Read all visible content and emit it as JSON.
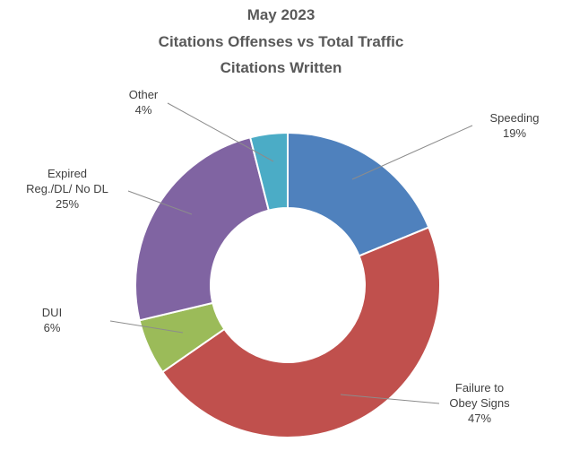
{
  "chart_data": {
    "type": "pie",
    "title_lines": [
      "May 2023",
      "Citations Offenses vs Total Traffic",
      "Citations Written"
    ],
    "donut": true,
    "slices": [
      {
        "label": "Speeding",
        "percent_label": "19%",
        "value": 19,
        "color": "#4f81bd"
      },
      {
        "label": "Failure to Obey Signs",
        "percent_label": "47%",
        "value": 47,
        "color": "#c0504d"
      },
      {
        "label": "DUI",
        "percent_label": "6%",
        "value": 6,
        "color": "#9bbb59"
      },
      {
        "label": "Expired Reg./DL/ No DL",
        "percent_label": "25%",
        "value": 25,
        "color": "#8064a2"
      },
      {
        "label": "Other",
        "percent_label": "4%",
        "value": 4,
        "color": "#4bacc6"
      }
    ],
    "legend": "none",
    "label_style": "callout lines"
  }
}
